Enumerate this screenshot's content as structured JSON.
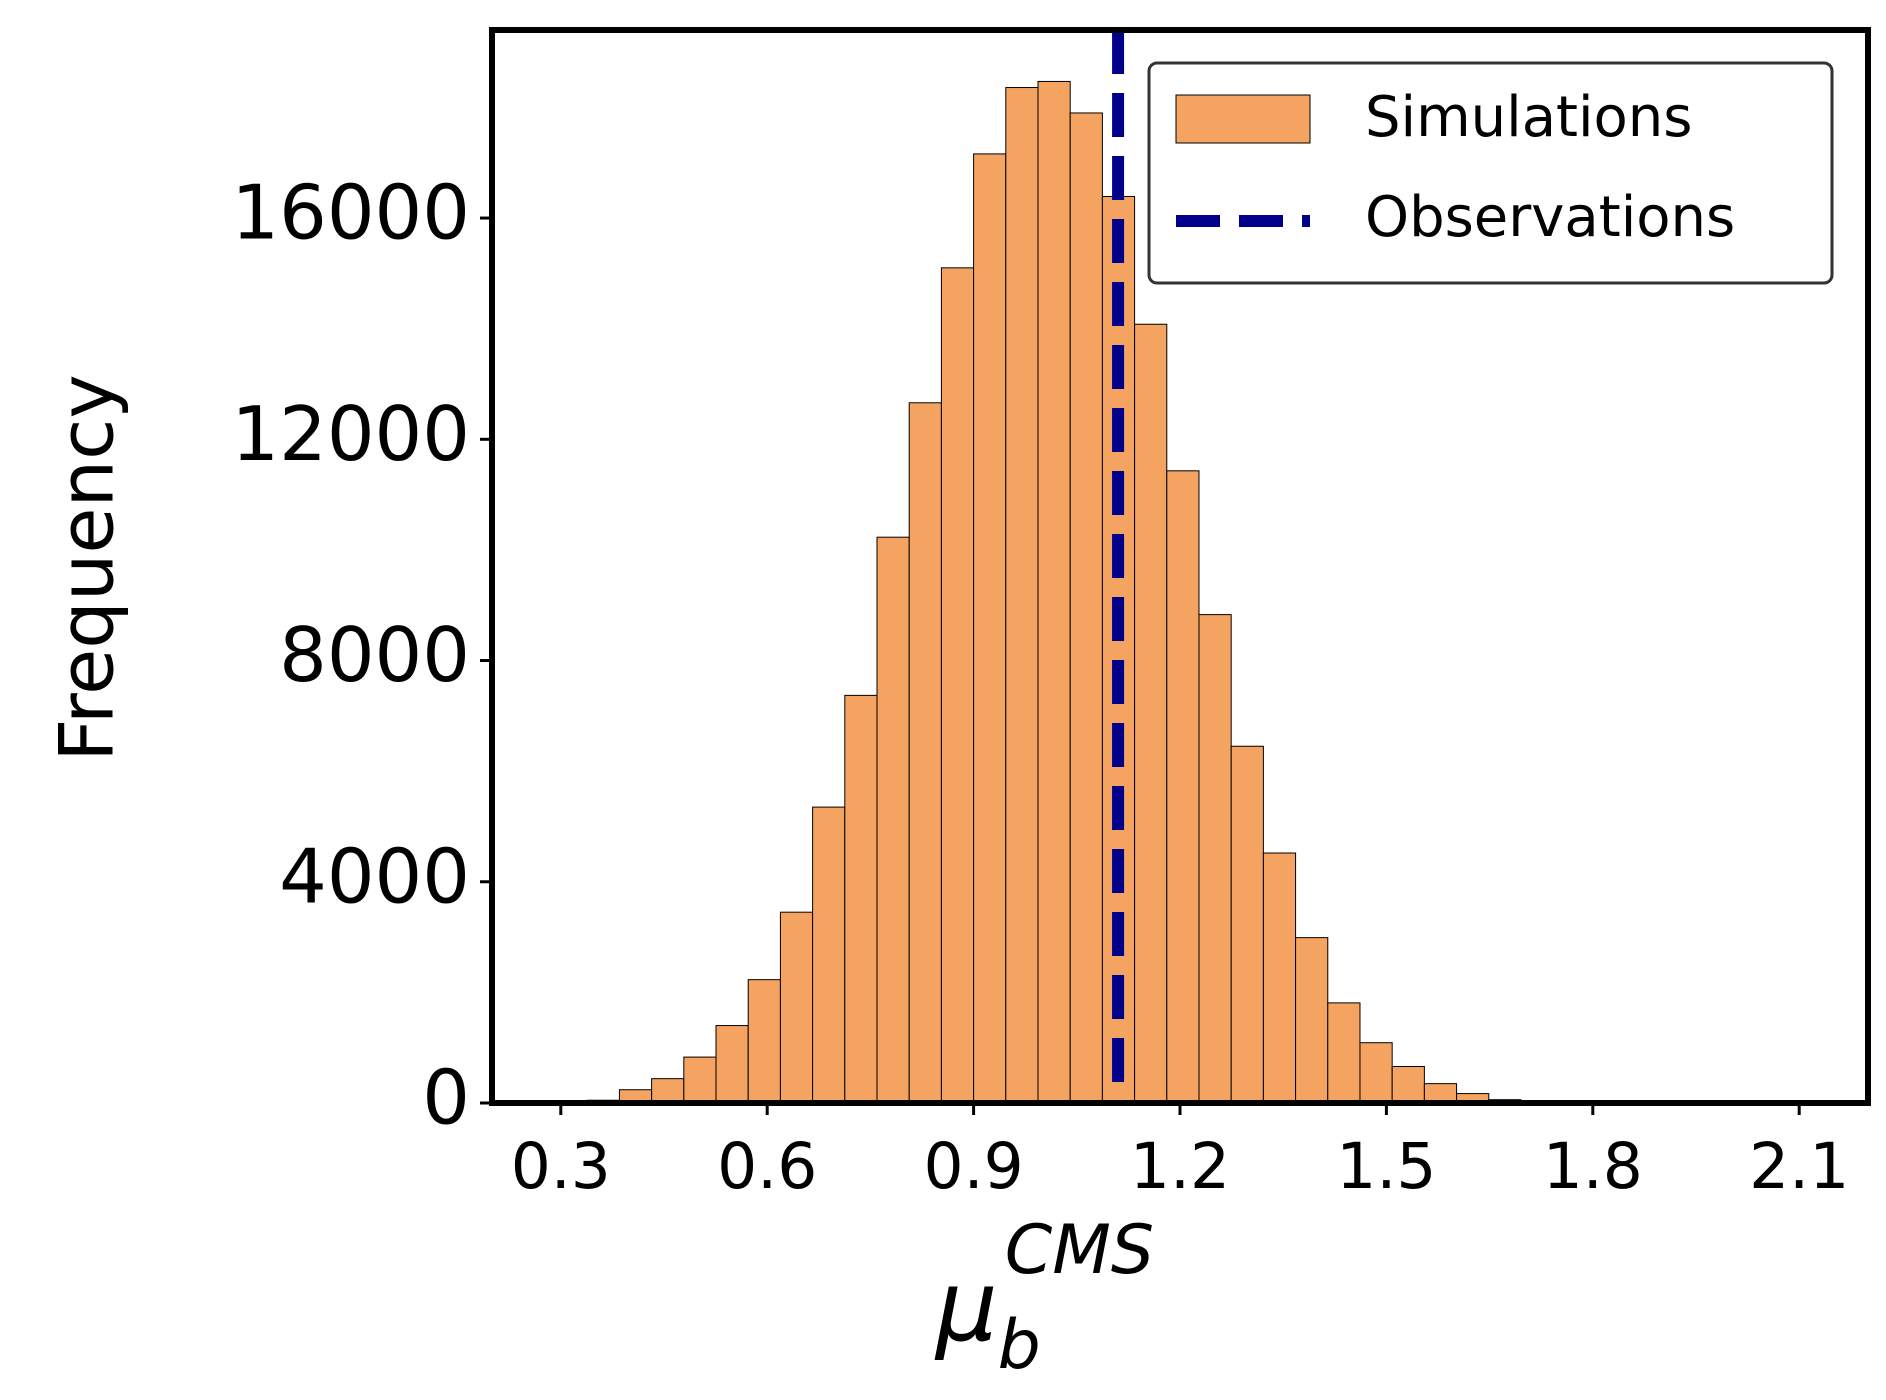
{
  "chart_data": {
    "type": "histogram",
    "xlabel": {
      "base": "μ",
      "sub": "b",
      "sup": "CMS"
    },
    "ylabel": "Frequency",
    "bins": [
      0.2916,
      0.3384,
      0.3852,
      0.432,
      0.4788,
      0.5256,
      0.5724,
      0.6192,
      0.666,
      0.7128,
      0.7596,
      0.8064,
      0.8532,
      0.9,
      0.9468,
      0.9936,
      1.0404,
      1.0872,
      1.134,
      1.1808,
      1.2276,
      1.2744,
      1.3212,
      1.368,
      1.4148,
      1.4616,
      1.5084,
      1.5552,
      1.602,
      1.6488,
      1.6956,
      1.7424,
      1.7892
    ],
    "values": [
      10,
      50,
      240,
      440,
      830,
      1400,
      2230,
      3450,
      5350,
      7370,
      10230,
      12660,
      15100,
      17160,
      18360,
      18470,
      17900,
      16390,
      14080,
      11430,
      8830,
      6450,
      4520,
      2990,
      1810,
      1090,
      660,
      350,
      170,
      60,
      20,
      5
    ],
    "series_name": "Simulations",
    "color": "#f4a460",
    "observation": {
      "name": "Observations",
      "value": 1.11,
      "color": "#00008b"
    },
    "xlim": [
      0.2,
      2.2
    ],
    "ylim": [
      0,
      19400
    ],
    "xticks": [
      0.3,
      0.6,
      0.9,
      1.2,
      1.5,
      1.8,
      2.1
    ],
    "yticks": [
      0,
      4000,
      8000,
      12000,
      16000
    ],
    "legend": "upper right"
  }
}
